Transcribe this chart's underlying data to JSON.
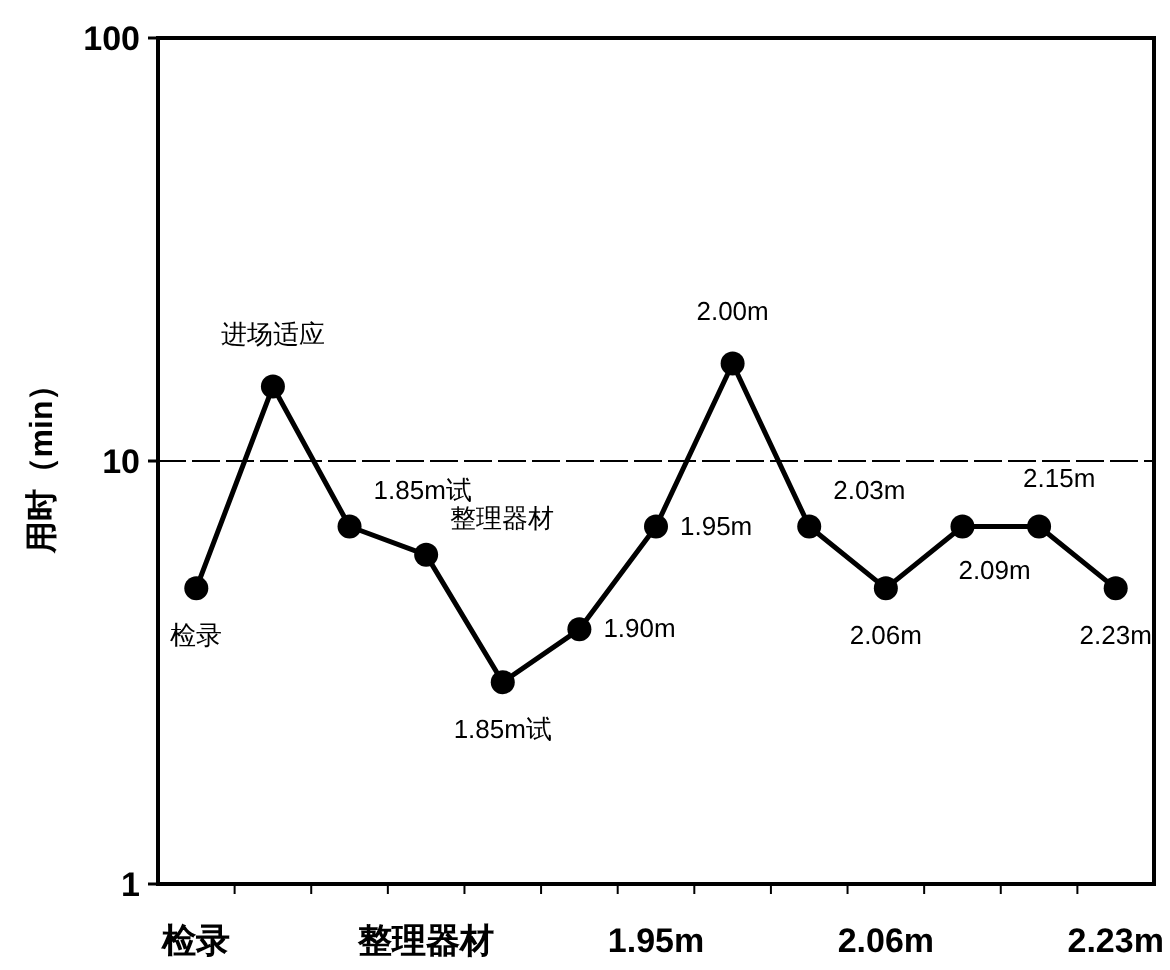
{
  "chart_data": {
    "type": "line",
    "ylabel": "用时（min）",
    "categories": [
      "检录",
      null,
      null,
      "整理器材",
      null,
      null,
      "1.95m",
      null,
      null,
      "2.06m",
      null,
      null,
      "2.23m"
    ],
    "series": [
      {
        "color": "#000000",
        "values": [
          5,
          15,
          7,
          6,
          3,
          4,
          7,
          17,
          7,
          5,
          7,
          7,
          5
        ]
      }
    ],
    "annotations": [
      "检录",
      "进场适应",
      "1.85m试",
      "整理器材",
      "1.85m试",
      "1.90m",
      "1.95m",
      "2.00m",
      "2.03m",
      "2.06m",
      "2.09m",
      "2.15m",
      "2.23m"
    ],
    "log": true,
    "ylim": [
      1,
      100
    ],
    "yticks": [
      1,
      10,
      100
    ],
    "grid": "y",
    "marker": "circle",
    "line_style": "solid"
  }
}
